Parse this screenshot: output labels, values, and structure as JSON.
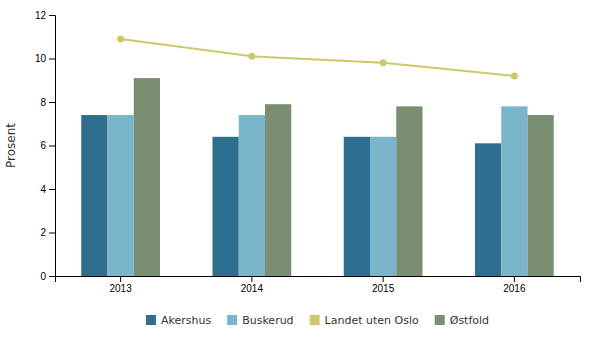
{
  "chart_data": {
    "type": "bar",
    "ylabel": "Prosent",
    "categories": [
      "2013",
      "2014",
      "2015",
      "2016"
    ],
    "series": [
      {
        "name": "Akershus",
        "color": "#2e6e8e",
        "values": [
          7.4,
          6.4,
          6.4,
          6.1
        ]
      },
      {
        "name": "Buskerud",
        "color": "#7ab5cc",
        "values": [
          7.4,
          7.4,
          6.4,
          7.8
        ]
      },
      {
        "name": "Landet uten Oslo",
        "type": "line",
        "marker": "circle",
        "color": "#ccc96a",
        "values": [
          10.9,
          10.1,
          9.8,
          9.2
        ]
      },
      {
        "name": "Østfold",
        "color": "#7a8e72",
        "values": [
          9.1,
          7.9,
          7.8,
          7.4
        ]
      }
    ],
    "ylim": [
      0,
      12
    ],
    "yticks": [
      0,
      2,
      4,
      6,
      8,
      10,
      12
    ],
    "grid": false,
    "legend": "bottom"
  }
}
